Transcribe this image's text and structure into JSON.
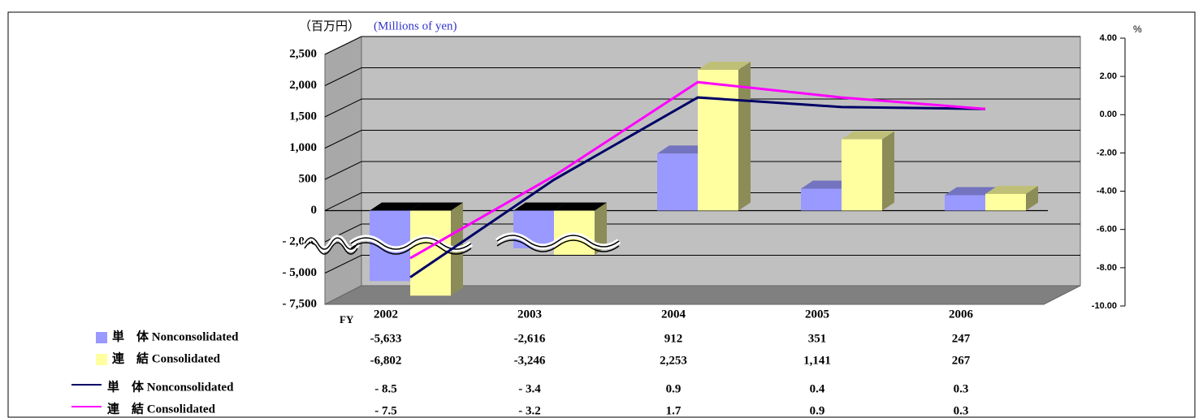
{
  "chart_data": {
    "type": "bar",
    "y_axis_label": "（百万円）",
    "y_axis_label_en": "(Millions of yen)",
    "y2_axis_label": "%",
    "x_axis_label": "FY",
    "categories": [
      "2002",
      "2003",
      "2004",
      "2005",
      "2006"
    ],
    "yticks": [
      {
        "value": -7500,
        "label": "- 7,500"
      },
      {
        "value": -5000,
        "label": "- 5,000"
      },
      {
        "value": -2000,
        "label": "- 2,000"
      },
      0,
      500,
      {
        "value": 1000,
        "label": "1,000"
      },
      {
        "value": 1500,
        "label": "1,500"
      },
      {
        "value": 2000,
        "label": "2,000"
      },
      {
        "value": 2500,
        "label": "2,500"
      }
    ],
    "y_scale": "broken",
    "y2lim": [
      -10,
      4
    ],
    "y2ticks": [
      {
        "value": -10,
        "label": "-10.00"
      },
      {
        "value": -8,
        "label": "-8.00"
      },
      {
        "value": -6,
        "label": "-6.00"
      },
      {
        "value": -4,
        "label": "-4.00"
      },
      {
        "value": -2,
        "label": "-2.00"
      },
      {
        "value": 0,
        "label": "0.00"
      },
      {
        "value": 2,
        "label": "2.00"
      },
      {
        "value": 4,
        "label": "4.00"
      }
    ],
    "grid": true,
    "series": [
      {
        "name": "単　体 Nonconsolidated",
        "type": "bar",
        "color": "#9999ff",
        "values": [
          -5633,
          -2616,
          912,
          351,
          247
        ],
        "value_labels": [
          "-5,633",
          "-2,616",
          "912",
          "351",
          "247"
        ]
      },
      {
        "name": "連　結 Consolidated",
        "type": "bar",
        "color": "#ffffa0",
        "values": [
          -6802,
          -3246,
          2253,
          1141,
          267
        ],
        "value_labels": [
          "-6,802",
          "-3,246",
          "2,253",
          "1,141",
          "267"
        ]
      },
      {
        "name": "単　体 Nonconsolidated",
        "type": "line",
        "axis": "y2",
        "color": "#000066",
        "values": [
          -8.5,
          -3.4,
          0.9,
          0.4,
          0.3
        ],
        "value_labels": [
          "- 8.5",
          "- 3.4",
          "0.9",
          "0.4",
          "0.3"
        ]
      },
      {
        "name": "連　結 Consolidated",
        "type": "line",
        "axis": "y2",
        "color": "#ff00ff",
        "values": [
          -7.5,
          -3.2,
          1.7,
          0.9,
          0.3
        ],
        "value_labels": [
          "- 7.5",
          "- 3.2",
          "1.7",
          "0.9",
          "0.3"
        ]
      }
    ]
  }
}
